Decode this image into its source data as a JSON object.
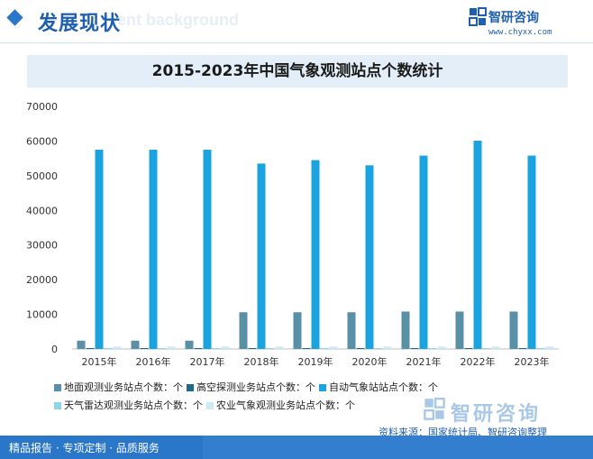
{
  "header": {
    "section_title": "发展现状",
    "bg_watermark": "ent background",
    "logo_name": "智研咨询",
    "logo_url": "www.chyxx.com"
  },
  "chart_data": {
    "type": "bar",
    "title": "2015-2023年中国气象观测站点个数统计",
    "categories": [
      "2015年",
      "2016年",
      "2017年",
      "2018年",
      "2019年",
      "2020年",
      "2021年",
      "2022年",
      "2023年"
    ],
    "ylim": [
      0,
      70000
    ],
    "yticks": [
      "0",
      "10000",
      "20000",
      "30000",
      "40000",
      "50000",
      "60000",
      "70000"
    ],
    "series": [
      {
        "name": "地面观测业务站点个数：个",
        "color": "#5a8fa8",
        "values": [
          2400,
          2400,
          2400,
          10600,
          10600,
          10600,
          10800,
          10800,
          10800
        ]
      },
      {
        "name": "高空探测业务站点个数：个",
        "color": "#1d6a8a",
        "values": [
          120,
          120,
          120,
          120,
          120,
          120,
          120,
          120,
          120
        ]
      },
      {
        "name": "自动气象站站点个数：个",
        "color": "#1aa3df",
        "values": [
          57500,
          57500,
          57500,
          53500,
          54500,
          53000,
          55800,
          60100,
          55800
        ]
      },
      {
        "name": "天气雷达观测业务站点个数：个",
        "color": "#8fd3ea",
        "values": [
          230,
          230,
          230,
          230,
          230,
          240,
          240,
          240,
          240
        ]
      },
      {
        "name": "农业气象观测业务站点个数：个",
        "color": "#cdeaf3",
        "values": [
          700,
          700,
          700,
          700,
          700,
          700,
          700,
          700,
          700
        ]
      }
    ]
  },
  "legend_rows": [
    [
      "地面观测业务站点个数：个",
      "高空探测业务站点个数：个",
      "自动气象站站点个数：个"
    ],
    [
      "天气雷达观测业务站点个数：个",
      "农业气象观测业务站点个数：个"
    ]
  ],
  "source_text": "资料来源：国家统计局、智研咨询整理",
  "footer_text": "精品报告 · 专项定制 · 品质服务",
  "bottom_logo_name": "智研咨询"
}
